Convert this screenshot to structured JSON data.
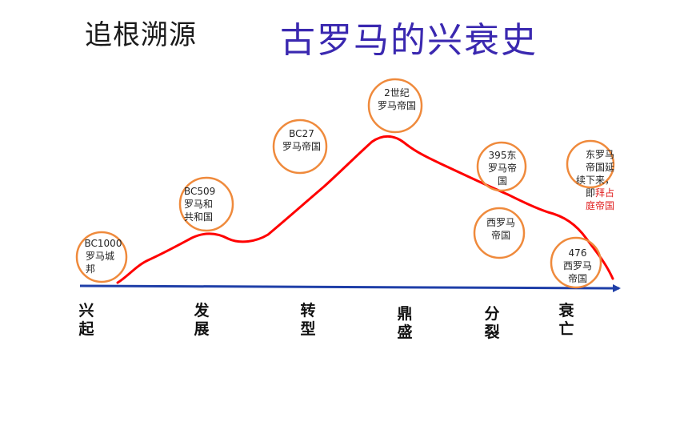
{
  "header": {
    "subject": "追根溯源",
    "title": "古罗马的兴衰史"
  },
  "events": [
    {
      "id": "bc1000",
      "lines": [
        "BC1000",
        "罗马城",
        "邦"
      ]
    },
    {
      "id": "bc509",
      "lines": [
        "BC509",
        "罗马和",
        "共和国"
      ]
    },
    {
      "id": "bc27",
      "lines": [
        "BC27",
        "罗马帝国"
      ]
    },
    {
      "id": "c2",
      "lines": [
        "2世纪",
        "罗马帝国"
      ]
    },
    {
      "id": "y395",
      "lines": [
        "395东",
        "罗马帝",
        "国"
      ]
    },
    {
      "id": "west",
      "lines": [
        "西罗马",
        "帝国"
      ]
    },
    {
      "id": "y476",
      "lines": [
        "476",
        "西罗马",
        "帝国"
      ]
    },
    {
      "id": "east",
      "lines": [
        "东罗马",
        "帝国延",
        "续下来，",
        "即"
      ],
      "highlight": [
        "拜占",
        "庭帝国"
      ]
    }
  ],
  "stages": [
    {
      "line1": "兴",
      "line2": "起"
    },
    {
      "line1": "发",
      "line2": "展"
    },
    {
      "line1": "转",
      "line2": "型"
    },
    {
      "line1": "鼎",
      "line2": "盛"
    },
    {
      "line1": "分",
      "line2": "裂"
    },
    {
      "line1": "衰",
      "line2": "亡"
    }
  ],
  "colors": {
    "curve": "#ff0000",
    "axis": "#1f3fa8",
    "circle": "#ef8a3c",
    "title": "#3a28b0",
    "highlight": "#e02020"
  }
}
